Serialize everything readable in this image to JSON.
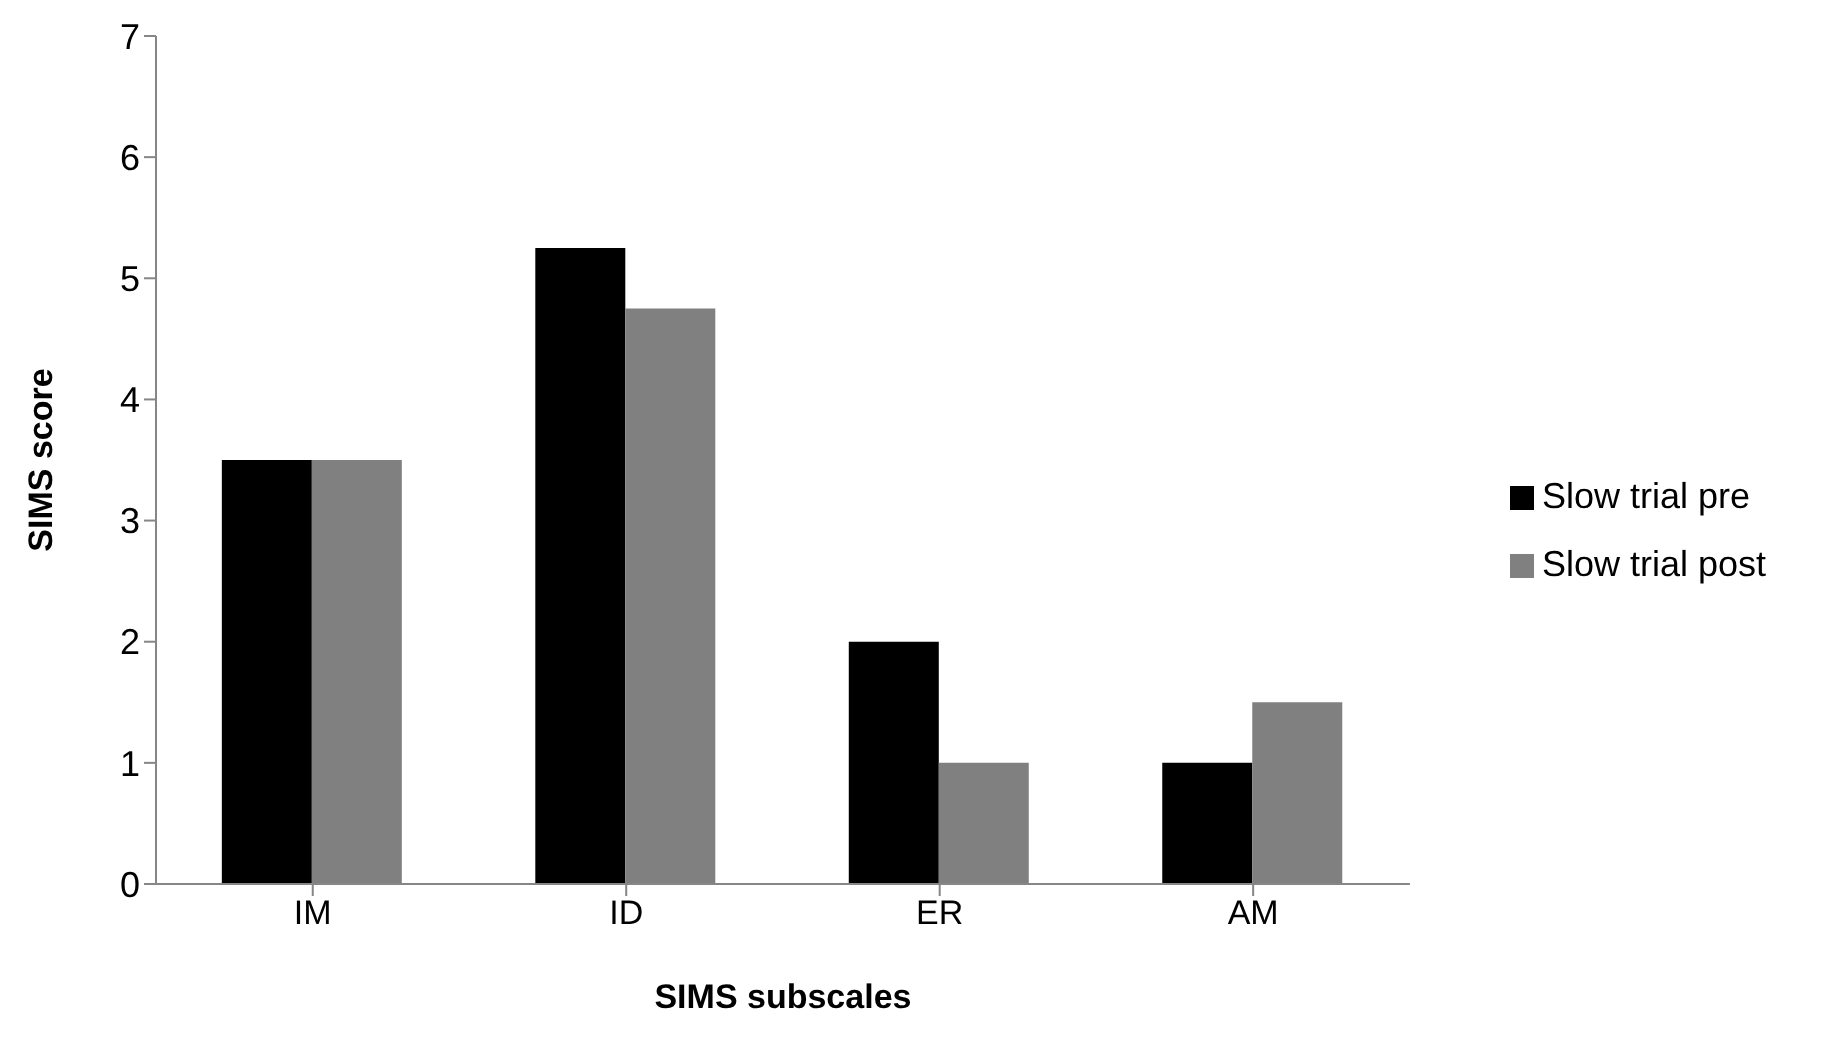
{
  "chart_data": {
    "type": "bar",
    "xlabel": "SIMS subscales",
    "ylabel": "SIMS score",
    "categories": [
      "IM",
      "ID",
      "ER",
      "AM"
    ],
    "series": [
      {
        "name": "Slow trial pre",
        "color": "#000000",
        "values": [
          3.5,
          5.25,
          2,
          1
        ]
      },
      {
        "name": "Slow trial post",
        "color": "#808080",
        "values": [
          3.5,
          4.75,
          1,
          1.5
        ]
      }
    ],
    "ylim": [
      0,
      7
    ],
    "yticks": [
      0,
      1,
      2,
      3,
      4,
      5,
      6,
      7
    ],
    "grid": false,
    "legend": "right"
  }
}
